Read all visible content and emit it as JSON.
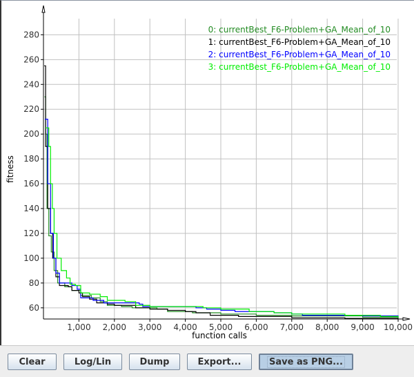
{
  "chart_data": {
    "type": "line",
    "xlabel": "function calls",
    "ylabel": "fitness",
    "xlim": [
      0,
      10000
    ],
    "ylim": [
      51,
      293
    ],
    "xticks": [
      1000,
      2000,
      3000,
      4000,
      5000,
      6000,
      7000,
      8000,
      9000,
      10000
    ],
    "xtick_labels": [
      "1,000",
      "2,000",
      "3,000",
      "4,000",
      "5,000",
      "6,000",
      "7,000",
      "8,000",
      "9,000",
      "10,000"
    ],
    "yticks": [
      60,
      80,
      100,
      120,
      140,
      160,
      180,
      200,
      220,
      240,
      260,
      280
    ],
    "ytick_labels": [
      "60",
      "80",
      "100",
      "120",
      "140",
      "160",
      "180",
      "200",
      "220",
      "240",
      "260",
      "280"
    ],
    "grid": true,
    "legend_placement": "top-right",
    "series": [
      {
        "name": "0: currentBest_F6-Problem+GA_Mean_of_10",
        "color": "#228b22",
        "points": [
          [
            30,
            230
          ],
          [
            60,
            200
          ],
          [
            100,
            140
          ],
          [
            150,
            118
          ],
          [
            220,
            105
          ],
          [
            300,
            90
          ],
          [
            400,
            80
          ],
          [
            600,
            77
          ],
          [
            800,
            74
          ],
          [
            1050,
            70
          ],
          [
            1350,
            68
          ],
          [
            1600,
            65
          ],
          [
            1800,
            62
          ],
          [
            2200,
            61
          ],
          [
            2500,
            60
          ],
          [
            3200,
            59
          ],
          [
            3500,
            57
          ],
          [
            4200,
            56
          ],
          [
            5000,
            55
          ],
          [
            6000,
            54
          ],
          [
            7000,
            53.5
          ],
          [
            9000,
            52.5
          ],
          [
            10000,
            52
          ]
        ]
      },
      {
        "name": "1: currentBest_F6-Problem+GA_Mean_of_10",
        "color": "#000000",
        "points": [
          [
            20,
            255
          ],
          [
            60,
            190
          ],
          [
            120,
            140
          ],
          [
            200,
            120
          ],
          [
            260,
            100
          ],
          [
            350,
            85
          ],
          [
            450,
            78
          ],
          [
            700,
            77
          ],
          [
            800,
            74
          ],
          [
            1000,
            72
          ],
          [
            1100,
            69
          ],
          [
            1300,
            67
          ],
          [
            1500,
            64
          ],
          [
            1800,
            63
          ],
          [
            2000,
            62
          ],
          [
            2600,
            60
          ],
          [
            3000,
            59
          ],
          [
            3500,
            58
          ],
          [
            4000,
            57
          ],
          [
            4300,
            56
          ],
          [
            4700,
            54
          ],
          [
            5500,
            53
          ],
          [
            7000,
            52
          ],
          [
            8500,
            51.5
          ],
          [
            10000,
            51
          ]
        ]
      },
      {
        "name": "2: currentBest_F6-Problem+GA_Mean_of_10",
        "color": "#0000ff",
        "points": [
          [
            40,
            212
          ],
          [
            120,
            160
          ],
          [
            200,
            120
          ],
          [
            280,
            100
          ],
          [
            350,
            88
          ],
          [
            450,
            80
          ],
          [
            800,
            78
          ],
          [
            950,
            75
          ],
          [
            1050,
            68
          ],
          [
            1400,
            66
          ],
          [
            1700,
            64
          ],
          [
            2400,
            64
          ],
          [
            2700,
            63
          ],
          [
            2800,
            61
          ],
          [
            4000,
            61
          ],
          [
            4300,
            60
          ],
          [
            4600,
            59
          ],
          [
            5000,
            58
          ],
          [
            5400,
            57
          ],
          [
            6500,
            56
          ],
          [
            7000,
            55
          ],
          [
            7300,
            54
          ],
          [
            9000,
            53.5
          ],
          [
            10000,
            52
          ]
        ]
      },
      {
        "name": "3: currentBest_F6-Problem+GA_Mean_of_10",
        "color": "#00ee00",
        "points": [
          [
            60,
            205
          ],
          [
            150,
            190
          ],
          [
            200,
            160
          ],
          [
            250,
            140
          ],
          [
            300,
            120
          ],
          [
            380,
            100
          ],
          [
            500,
            90
          ],
          [
            650,
            84
          ],
          [
            750,
            79
          ],
          [
            900,
            78
          ],
          [
            1050,
            72
          ],
          [
            1300,
            71
          ],
          [
            1600,
            69
          ],
          [
            1800,
            66
          ],
          [
            2300,
            65
          ],
          [
            2600,
            62
          ],
          [
            3000,
            61
          ],
          [
            4500,
            60
          ],
          [
            5000,
            59
          ],
          [
            5800,
            57
          ],
          [
            6500,
            56
          ],
          [
            7000,
            55
          ],
          [
            8500,
            54
          ],
          [
            9500,
            53
          ],
          [
            10000,
            52
          ]
        ]
      }
    ]
  },
  "buttons": {
    "clear": "Clear",
    "loglin": "Log/Lin",
    "dump": "Dump",
    "export": "Export...",
    "save_png": "Save as PNG..."
  }
}
